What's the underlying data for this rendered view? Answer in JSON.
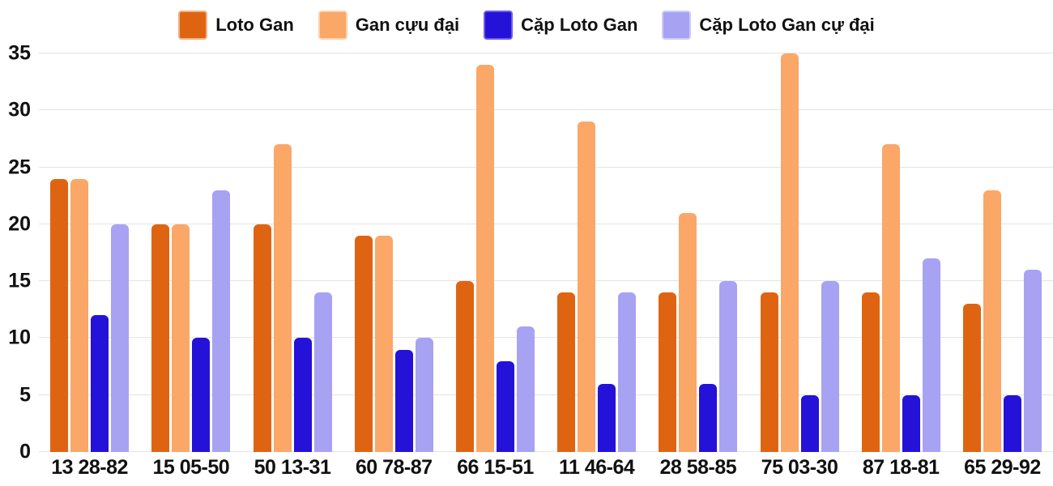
{
  "chart_data": {
    "type": "bar",
    "title": "",
    "xlabel": "",
    "ylabel": "",
    "ylim": [
      0,
      35
    ],
    "yticks": [
      0,
      5,
      10,
      15,
      20,
      25,
      30,
      35
    ],
    "grid": "horizontal",
    "grid_color": "#e4e4e4",
    "legend_position": "top",
    "categories": [
      "13 28-82",
      "15 05-50",
      "50 13-31",
      "60 78-87",
      "66 15-51",
      "11 46-64",
      "28 58-85",
      "75 03-30",
      "87 18-81",
      "65 29-92"
    ],
    "series": [
      {
        "name": "Loto Gan",
        "color": "#df6412",
        "border": "#f2b284",
        "values": [
          24,
          20,
          20,
          19,
          15,
          14,
          14,
          14,
          14,
          13
        ]
      },
      {
        "name": "Gan cựu đại",
        "color": "#faa768",
        "border": "#fdd2af",
        "values": [
          24,
          20,
          27,
          19,
          34,
          29,
          21,
          35,
          27,
          23
        ]
      },
      {
        "name": "Cặp Loto Gan",
        "color": "#2412d9",
        "border": "#6c5eec",
        "values": [
          12,
          10,
          10,
          9,
          8,
          6,
          6,
          5,
          5,
          5
        ]
      },
      {
        "name": "Cặp Loto Gan cự đại",
        "color": "#a8a2f3",
        "border": "#cfcbf9",
        "values": [
          20,
          23,
          14,
          10,
          11,
          14,
          15,
          15,
          17,
          16
        ]
      }
    ]
  }
}
